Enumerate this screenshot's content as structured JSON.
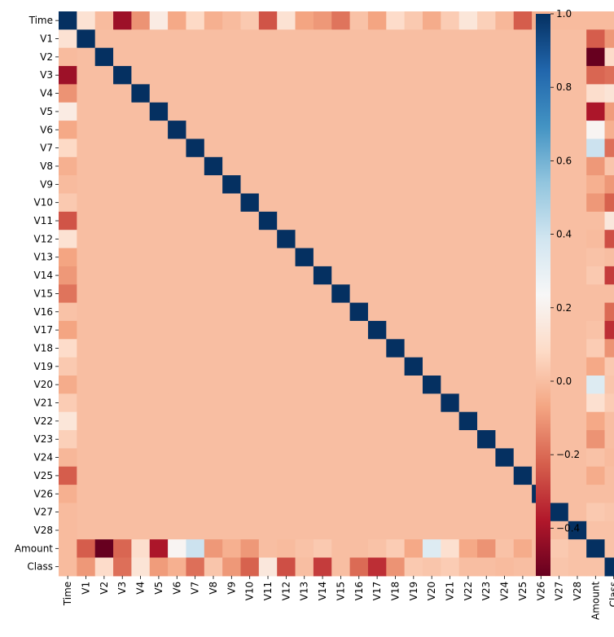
{
  "chart_data": {
    "type": "heatmap",
    "title": "",
    "labels": [
      "Time",
      "V1",
      "V2",
      "V3",
      "V4",
      "V5",
      "V6",
      "V7",
      "V8",
      "V9",
      "V10",
      "V11",
      "V12",
      "V13",
      "V14",
      "V15",
      "V16",
      "V17",
      "V18",
      "V19",
      "V20",
      "V21",
      "V22",
      "V23",
      "V24",
      "V25",
      "V26",
      "V27",
      "V28",
      "Amount",
      "Class"
    ],
    "time_corr": [
      1,
      0.12,
      -0.01,
      -0.42,
      -0.11,
      0.17,
      -0.06,
      0.08,
      -0.04,
      -0.01,
      0.03,
      -0.25,
      0.12,
      -0.07,
      -0.1,
      -0.18,
      0.01,
      -0.07,
      0.09,
      0.03,
      -0.05,
      0.04,
      0.14,
      0.05,
      -0.02,
      -0.23,
      -0.04,
      -0.01,
      -0.01,
      -0.01,
      -0.01
    ],
    "amount_corr": [
      -0.01,
      -0.23,
      -0.53,
      -0.21,
      0.1,
      -0.39,
      0.22,
      0.4,
      -0.1,
      -0.04,
      -0.1,
      0,
      -0.01,
      0.01,
      0.03,
      -0.0,
      -0.0,
      0.01,
      0.04,
      -0.06,
      0.34,
      0.11,
      -0.06,
      -0.11,
      0.01,
      -0.05,
      -0.0,
      0.03,
      0.01,
      1,
      0.01
    ],
    "class_corr": [
      -0.01,
      -0.1,
      0.09,
      -0.19,
      0.13,
      -0.09,
      -0.04,
      -0.19,
      0.02,
      -0.1,
      -0.22,
      0.15,
      -0.26,
      -0.0,
      -0.3,
      -0.0,
      -0.2,
      -0.33,
      -0.11,
      0.03,
      0.02,
      0.04,
      0,
      -0.0,
      -0.01,
      0,
      0,
      0.02,
      0.01,
      0.01,
      1
    ],
    "colorbar": {
      "min": -0.53,
      "max": 1.0,
      "ticks": [
        -0.4,
        -0.2,
        0.0,
        0.2,
        0.4,
        0.6,
        0.8,
        1.0
      ],
      "tick_labels": [
        "−0.4",
        "−0.2",
        "0.0",
        "0.2",
        "0.4",
        "0.6",
        "0.8",
        "1.0"
      ]
    },
    "colormap": "RdBu",
    "colormap_stops": [
      "#67001f",
      "#b2182b",
      "#d6604d",
      "#f4a582",
      "#fddbc7",
      "#f7f7f7",
      "#d1e5f0",
      "#92c5de",
      "#4393c3",
      "#2166ac",
      "#053061"
    ]
  }
}
